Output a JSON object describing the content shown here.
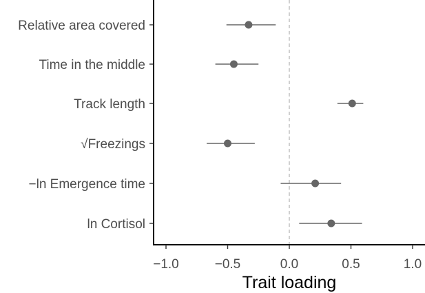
{
  "chart_data": {
    "type": "scatter",
    "subtype": "forest-plot",
    "xlabel": "Trait loading",
    "ylabel": "",
    "xlim": [
      -1.1,
      1.1
    ],
    "x_ticks": [
      -1.0,
      -0.5,
      0.0,
      0.5,
      1.0
    ],
    "x_tick_labels": [
      "−1.0",
      "−0.5",
      "0.0",
      "0.5",
      "1.0"
    ],
    "reference_line": {
      "x": 0,
      "style": "dashed",
      "color": "#bdbdbd"
    },
    "grid": false,
    "legend": "none",
    "point_color": "#666666",
    "categories": [
      "Relative area covered",
      "Time in the middle",
      "Track length",
      "√Freezings",
      "−ln Emergence time",
      "ln Cortisol"
    ],
    "estimates": [
      -0.33,
      -0.45,
      0.51,
      -0.5,
      0.21,
      0.34
    ],
    "ci_lower": [
      -0.51,
      -0.6,
      0.39,
      -0.67,
      -0.07,
      0.08
    ],
    "ci_upper": [
      -0.11,
      -0.25,
      0.6,
      -0.28,
      0.42,
      0.59
    ]
  }
}
